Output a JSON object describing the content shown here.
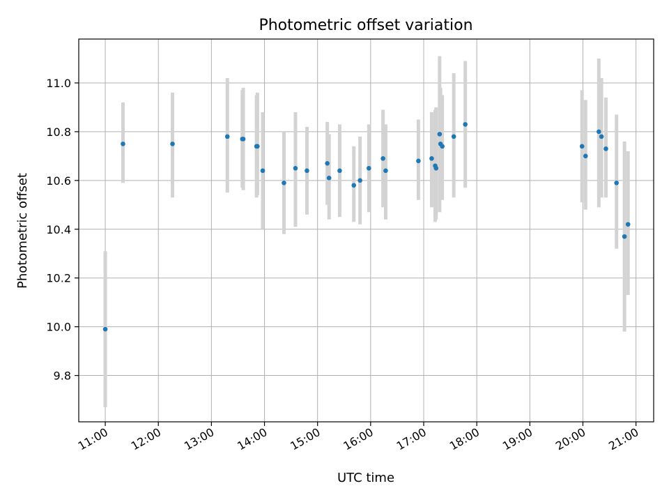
{
  "chart_data": {
    "type": "scatter",
    "title": "Photometric offset variation",
    "xlabel": "UTC time",
    "ylabel": "Photometric offset",
    "xlim": [
      "10:30",
      "21:20"
    ],
    "ylim": [
      9.61,
      11.18
    ],
    "grid": true,
    "x_ticks": [
      "11:00",
      "12:00",
      "13:00",
      "14:00",
      "15:00",
      "16:00",
      "17:00",
      "18:00",
      "19:00",
      "20:00",
      "21:00"
    ],
    "y_ticks": [
      "9.8",
      "10.0",
      "10.2",
      "10.4",
      "10.6",
      "10.8",
      "11.0"
    ],
    "colors": {
      "marker": "#1f77b4",
      "errorbar": "#d3d3d3",
      "grid": "#b0b0b0"
    },
    "series": [
      {
        "points": [
          {
            "x": "11:00",
            "y": 9.99,
            "ylo": 9.67,
            "yhi": 10.31
          },
          {
            "x": "11:20",
            "y": 10.75,
            "ylo": 10.59,
            "yhi": 10.92
          },
          {
            "x": "12:16",
            "y": 10.75,
            "ylo": 10.53,
            "yhi": 10.96
          },
          {
            "x": "13:18",
            "y": 10.78,
            "ylo": 10.55,
            "yhi": 11.02
          },
          {
            "x": "13:35",
            "y": 10.77,
            "ylo": 10.57,
            "yhi": 10.97
          },
          {
            "x": "13:36",
            "y": 10.77,
            "ylo": 10.56,
            "yhi": 10.98
          },
          {
            "x": "13:51",
            "y": 10.74,
            "ylo": 10.53,
            "yhi": 10.95
          },
          {
            "x": "13:52",
            "y": 10.74,
            "ylo": 10.54,
            "yhi": 10.96
          },
          {
            "x": "13:58",
            "y": 10.64,
            "ylo": 10.4,
            "yhi": 10.88
          },
          {
            "x": "14:22",
            "y": 10.59,
            "ylo": 10.38,
            "yhi": 10.8
          },
          {
            "x": "14:35",
            "y": 10.65,
            "ylo": 10.41,
            "yhi": 10.88
          },
          {
            "x": "14:48",
            "y": 10.64,
            "ylo": 10.46,
            "yhi": 10.82
          },
          {
            "x": "15:11",
            "y": 10.67,
            "ylo": 10.5,
            "yhi": 10.84
          },
          {
            "x": "15:13",
            "y": 10.61,
            "ylo": 10.44,
            "yhi": 10.79
          },
          {
            "x": "15:25",
            "y": 10.64,
            "ylo": 10.45,
            "yhi": 10.83
          },
          {
            "x": "15:41",
            "y": 10.58,
            "ylo": 10.43,
            "yhi": 10.74
          },
          {
            "x": "15:48",
            "y": 10.6,
            "ylo": 10.42,
            "yhi": 10.78
          },
          {
            "x": "15:58",
            "y": 10.65,
            "ylo": 10.47,
            "yhi": 10.83
          },
          {
            "x": "16:14",
            "y": 10.69,
            "ylo": 10.49,
            "yhi": 10.89
          },
          {
            "x": "16:17",
            "y": 10.64,
            "ylo": 10.44,
            "yhi": 10.83
          },
          {
            "x": "16:54",
            "y": 10.68,
            "ylo": 10.52,
            "yhi": 10.85
          },
          {
            "x": "17:09",
            "y": 10.69,
            "ylo": 10.49,
            "yhi": 10.88
          },
          {
            "x": "17:13",
            "y": 10.66,
            "ylo": 10.43,
            "yhi": 10.89
          },
          {
            "x": "17:14",
            "y": 10.65,
            "ylo": 10.44,
            "yhi": 10.9
          },
          {
            "x": "17:18",
            "y": 10.79,
            "ylo": 10.47,
            "yhi": 11.11
          },
          {
            "x": "17:19",
            "y": 10.75,
            "ylo": 10.52,
            "yhi": 10.98
          },
          {
            "x": "17:21",
            "y": 10.74,
            "ylo": 10.52,
            "yhi": 10.95
          },
          {
            "x": "17:34",
            "y": 10.78,
            "ylo": 10.53,
            "yhi": 11.04
          },
          {
            "x": "17:47",
            "y": 10.83,
            "ylo": 10.57,
            "yhi": 11.09
          },
          {
            "x": "19:59",
            "y": 10.74,
            "ylo": 10.51,
            "yhi": 10.97
          },
          {
            "x": "20:03",
            "y": 10.7,
            "ylo": 10.48,
            "yhi": 10.93
          },
          {
            "x": "20:18",
            "y": 10.8,
            "ylo": 10.49,
            "yhi": 11.1
          },
          {
            "x": "20:21",
            "y": 10.78,
            "ylo": 10.53,
            "yhi": 11.02
          },
          {
            "x": "20:26",
            "y": 10.73,
            "ylo": 10.53,
            "yhi": 10.94
          },
          {
            "x": "20:38",
            "y": 10.59,
            "ylo": 10.32,
            "yhi": 10.87
          },
          {
            "x": "20:47",
            "y": 10.37,
            "ylo": 9.98,
            "yhi": 10.76
          },
          {
            "x": "20:51",
            "y": 10.42,
            "ylo": 10.13,
            "yhi": 10.72
          }
        ]
      }
    ]
  }
}
